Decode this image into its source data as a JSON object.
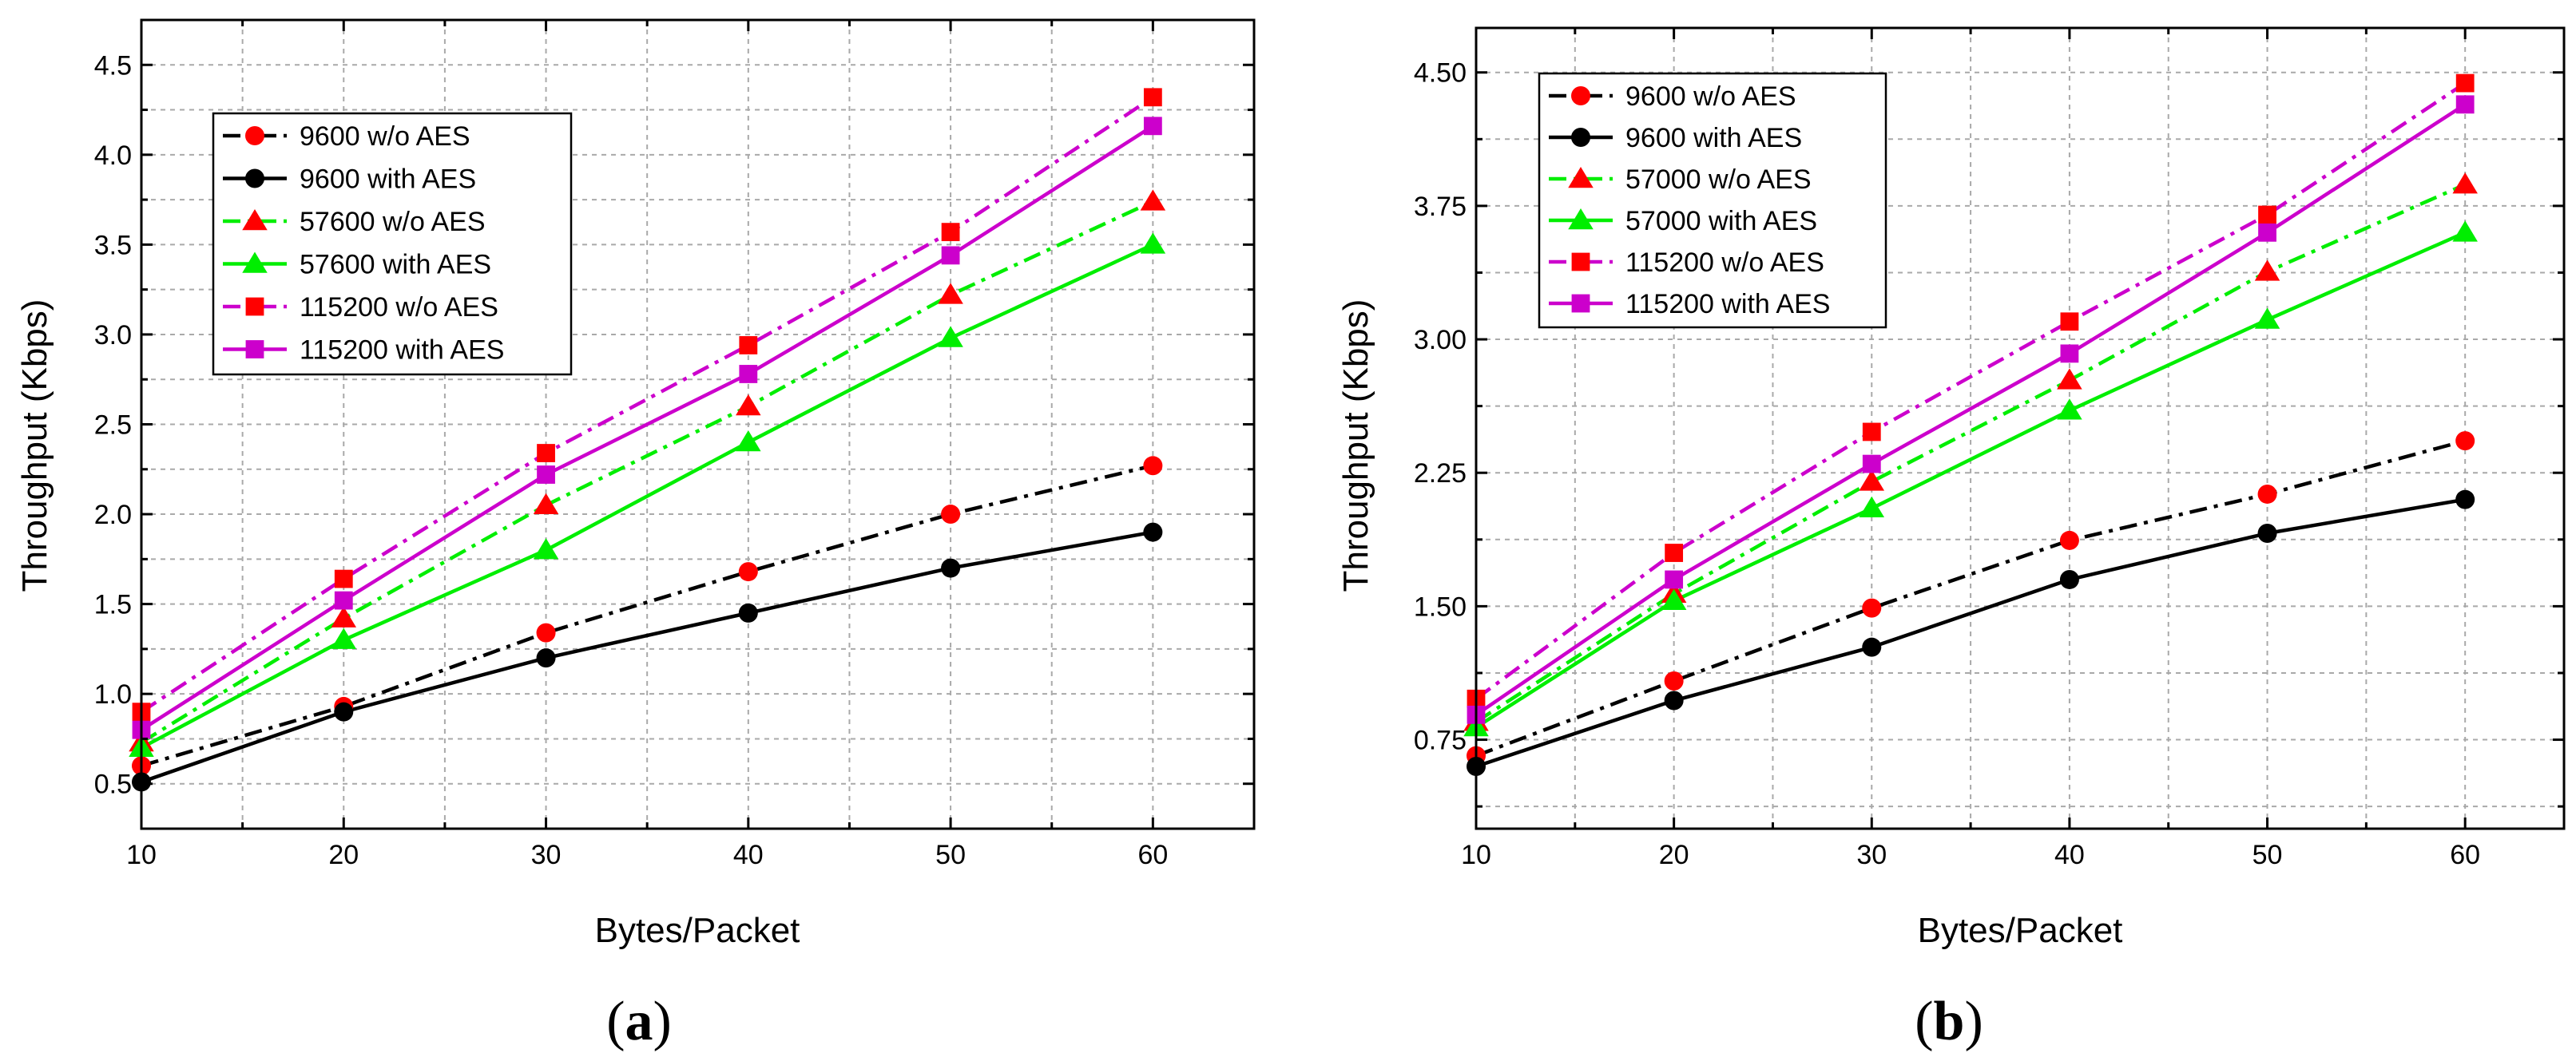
{
  "chart_data": [
    {
      "type": "line",
      "panel_label": "(a)",
      "panel_letter": "a",
      "xlabel": "Bytes/Packet",
      "ylabel": "Throughput (Kbps)",
      "x": [
        10,
        20,
        30,
        40,
        50,
        60
      ],
      "xlim": [
        10,
        65
      ],
      "ylim": [
        0.25,
        4.75
      ],
      "xticks": [
        10,
        20,
        30,
        40,
        50,
        60
      ],
      "xtick_labels": [
        "10",
        "20",
        "30",
        "40",
        "50",
        "60"
      ],
      "yticks": [
        0.5,
        1.0,
        1.5,
        2.0,
        2.5,
        3.0,
        3.5,
        4.0,
        4.5
      ],
      "ytick_labels": [
        "0.5",
        "1.0",
        "1.5",
        "2.0",
        "2.5",
        "3.0",
        "3.5",
        "4.0",
        "4.5"
      ],
      "grid": true,
      "legend_position": "top-left",
      "series": [
        {
          "name": "9600 w/o AES",
          "values": [
            0.6,
            0.93,
            1.34,
            1.68,
            2.0,
            2.27
          ],
          "color": "#000000",
          "marker_color": "#ff0000",
          "marker": "circle",
          "dash": "dashdot"
        },
        {
          "name": "9600 with AES",
          "values": [
            0.51,
            0.9,
            1.2,
            1.45,
            1.7,
            1.9
          ],
          "color": "#000000",
          "marker_color": "#000000",
          "marker": "circle",
          "dash": "solid"
        },
        {
          "name": "57600 w/o AES",
          "values": [
            0.73,
            1.42,
            2.05,
            2.6,
            3.22,
            3.74
          ],
          "color": "#00ee00",
          "marker_color": "#ff0000",
          "marker": "triangle",
          "dash": "dashdot"
        },
        {
          "name": "57600 with AES",
          "values": [
            0.7,
            1.3,
            1.8,
            2.4,
            2.98,
            3.5
          ],
          "color": "#00ee00",
          "marker_color": "#00ee00",
          "marker": "triangle",
          "dash": "solid"
        },
        {
          "name": "115200 w/o AES",
          "values": [
            0.9,
            1.64,
            2.34,
            2.94,
            3.57,
            4.32
          ],
          "color": "#cc00cc",
          "marker_color": "#ff0000",
          "marker": "square",
          "dash": "dashdot"
        },
        {
          "name": "115200 with AES",
          "values": [
            0.8,
            1.52,
            2.22,
            2.78,
            3.44,
            4.16
          ],
          "color": "#cc00cc",
          "marker_color": "#cc00cc",
          "marker": "square",
          "dash": "solid"
        }
      ]
    },
    {
      "type": "line",
      "panel_label": "(b)",
      "panel_letter": "b",
      "xlabel": "Bytes/Packet",
      "ylabel": "Throughput (Kbps)",
      "x": [
        10,
        20,
        30,
        40,
        50,
        60
      ],
      "xlim": [
        10,
        65
      ],
      "ylim": [
        0.25,
        4.75
      ],
      "xticks": [
        10,
        20,
        30,
        40,
        50,
        60
      ],
      "xtick_labels": [
        "10",
        "20",
        "30",
        "40",
        "50",
        "60"
      ],
      "yticks": [
        0.75,
        1.5,
        2.25,
        3.0,
        3.75,
        4.5
      ],
      "ytick_labels": [
        "0.75",
        "1.50",
        "2.25",
        "3.00",
        "3.75",
        "4.50"
      ],
      "grid": true,
      "legend_position": "top-left",
      "series": [
        {
          "name": "9600 w/o AES",
          "values": [
            0.66,
            1.08,
            1.49,
            1.87,
            2.13,
            2.43
          ],
          "color": "#000000",
          "marker_color": "#ff0000",
          "marker": "circle",
          "dash": "dashdot"
        },
        {
          "name": "9600 with AES",
          "values": [
            0.6,
            0.97,
            1.27,
            1.65,
            1.91,
            2.1
          ],
          "color": "#000000",
          "marker_color": "#000000",
          "marker": "circle",
          "dash": "solid"
        },
        {
          "name": "57000 w/o AES",
          "values": [
            0.85,
            1.57,
            2.2,
            2.77,
            3.38,
            3.87
          ],
          "color": "#00ee00",
          "marker_color": "#ff0000",
          "marker": "triangle",
          "dash": "dashdot"
        },
        {
          "name": "57000 with AES",
          "values": [
            0.82,
            1.53,
            2.05,
            2.6,
            3.11,
            3.6
          ],
          "color": "#00ee00",
          "marker_color": "#00ee00",
          "marker": "triangle",
          "dash": "solid"
        },
        {
          "name": "115200 w/o AES",
          "values": [
            0.98,
            1.8,
            2.48,
            3.1,
            3.7,
            4.44
          ],
          "color": "#cc00cc",
          "marker_color": "#ff0000",
          "marker": "square",
          "dash": "dashdot"
        },
        {
          "name": "115200 with AES",
          "values": [
            0.89,
            1.65,
            2.3,
            2.92,
            3.6,
            4.32
          ],
          "color": "#cc00cc",
          "marker_color": "#cc00cc",
          "marker": "square",
          "dash": "solid"
        }
      ]
    }
  ]
}
